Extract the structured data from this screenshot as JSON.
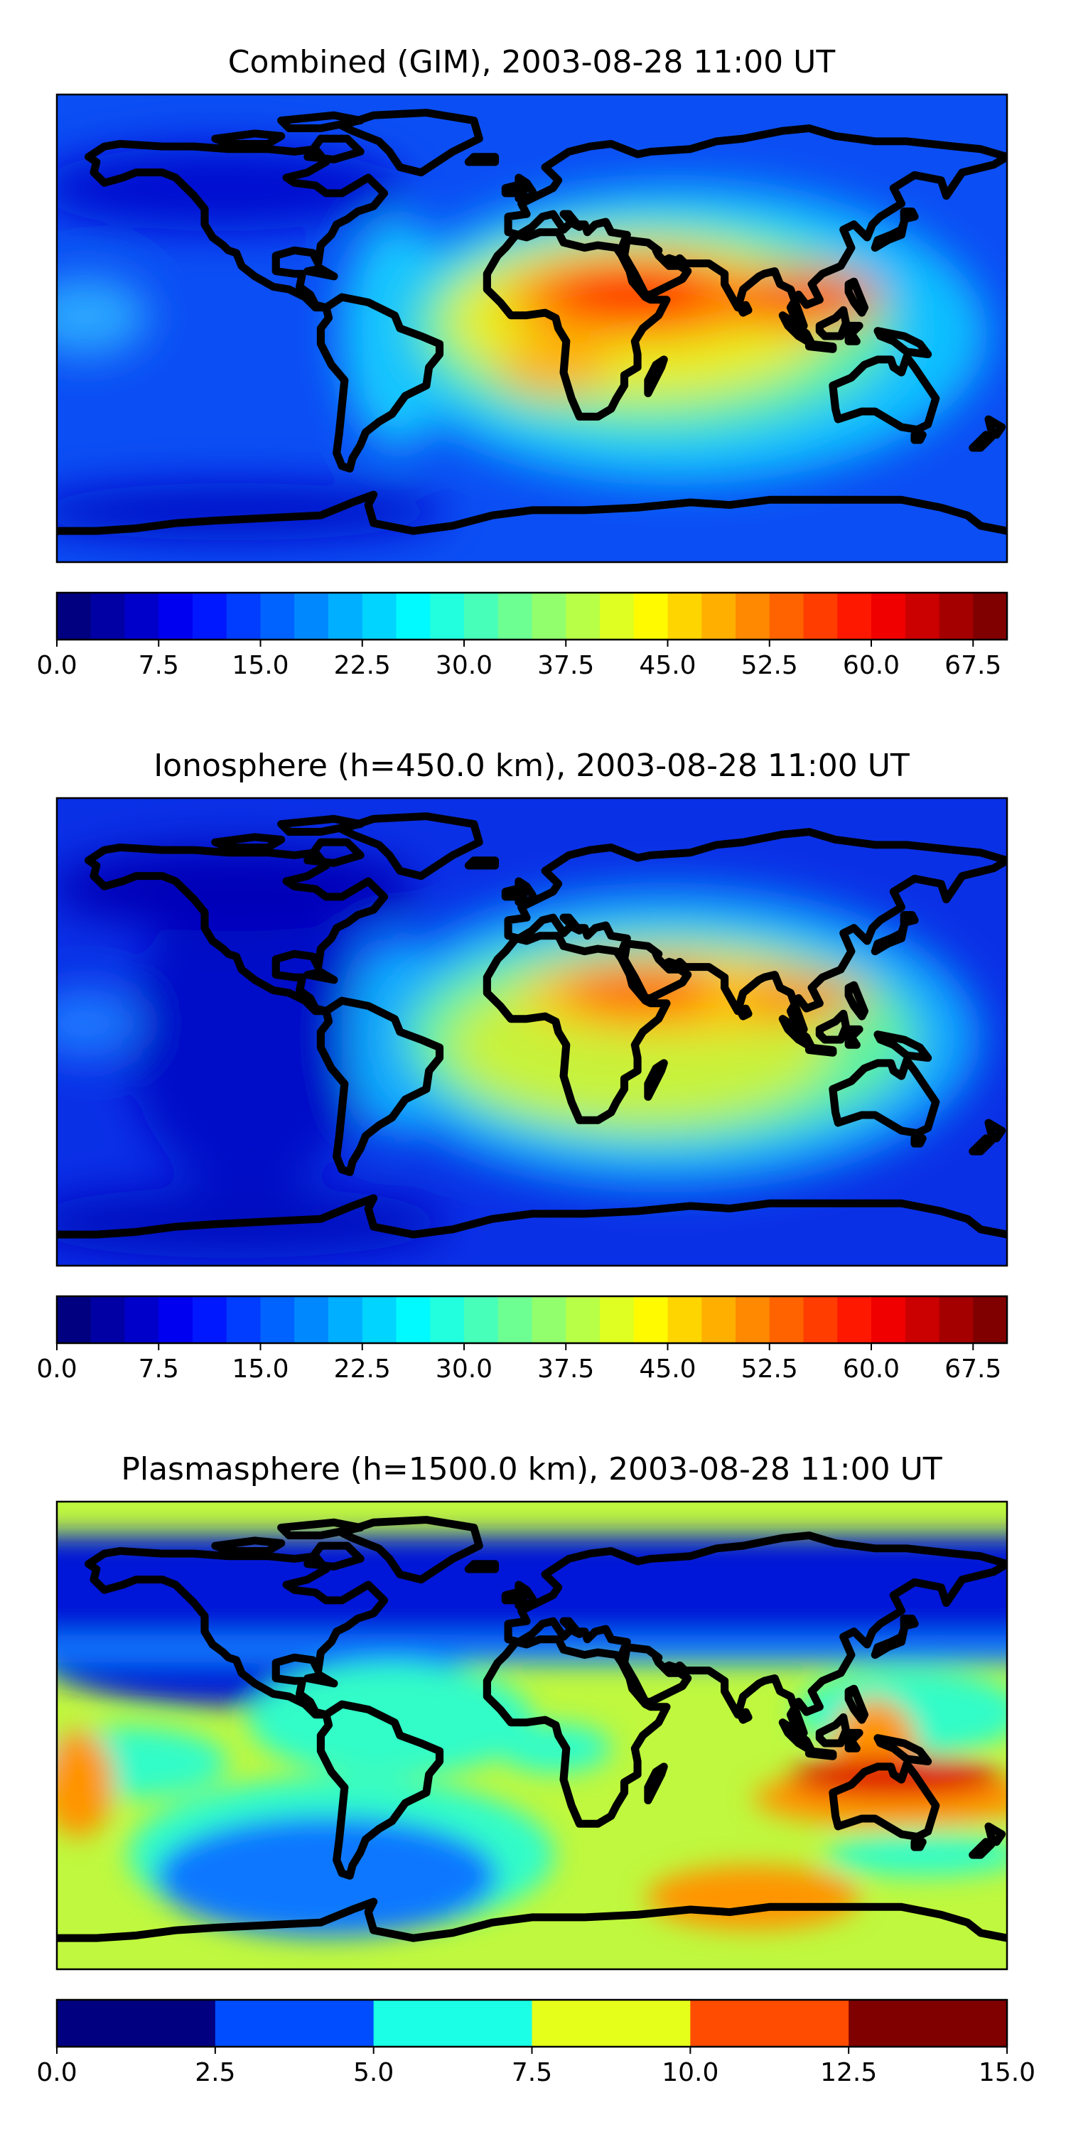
{
  "chart_data": [
    {
      "type": "heatmap",
      "title": "Combined (GIM), 2003-08-28 11:00 UT",
      "colormap": "jet",
      "colorbar": {
        "range": [
          0.0,
          70.0
        ],
        "levels": 28,
        "ticks": [
          "0.0",
          "7.5",
          "15.0",
          "22.5",
          "30.0",
          "37.5",
          "45.0",
          "52.5",
          "60.0",
          "67.5"
        ]
      },
      "features": [
        {
          "lon": 30,
          "lat": 10,
          "value": 62,
          "note": "peak over NE Africa / Arabia"
        },
        {
          "lon": 100,
          "lat": 13,
          "value": 60,
          "note": "peak over SE Asia"
        },
        {
          "lon": 15,
          "lat": -10,
          "value": 45
        },
        {
          "lon": -60,
          "lat": -10,
          "value": 28
        },
        {
          "lon": -175,
          "lat": 0,
          "value": 25
        },
        {
          "lon": -100,
          "lat": 55,
          "value": 5
        }
      ]
    },
    {
      "type": "heatmap",
      "title": "Ionosphere  (h=450.0 km), 2003-08-28 11:00 UT",
      "colormap": "jet",
      "colorbar": {
        "range": [
          0.0,
          70.0
        ],
        "levels": 28,
        "ticks": [
          "0.0",
          "7.5",
          "15.0",
          "22.5",
          "30.0",
          "37.5",
          "45.0",
          "52.5",
          "60.0",
          "67.5"
        ]
      },
      "features": [
        {
          "lon": 35,
          "lat": 12,
          "value": 55
        },
        {
          "lon": 100,
          "lat": 13,
          "value": 52
        },
        {
          "lon": 10,
          "lat": -10,
          "value": 40
        },
        {
          "lon": -60,
          "lat": -10,
          "value": 22
        },
        {
          "lon": -120,
          "lat": 0,
          "value": 4
        }
      ]
    },
    {
      "type": "heatmap",
      "title": "Plasmasphere (h=1500.0 km), 2003-08-28 11:00 UT",
      "colormap": "jet",
      "colorbar": {
        "range": [
          0.0,
          15.0
        ],
        "levels": 6,
        "ticks": [
          "0.0",
          "2.5",
          "5.0",
          "7.5",
          "10.0",
          "12.5",
          "15.0"
        ]
      },
      "features": [
        {
          "lon": 135,
          "lat": -12,
          "value": 13
        },
        {
          "lon": -175,
          "lat": -15,
          "value": 11
        },
        {
          "lon": 40,
          "lat": -55,
          "value": 11
        },
        {
          "lon": -75,
          "lat": -40,
          "value": 4
        },
        {
          "lon": 0,
          "lat": 55,
          "value": 1.5
        }
      ]
    }
  ]
}
